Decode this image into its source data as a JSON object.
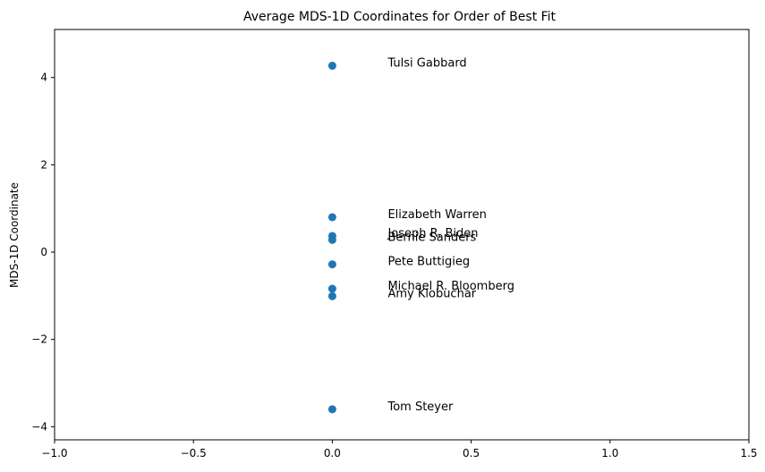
{
  "chart_data": {
    "type": "scatter",
    "title": "Average MDS-1D Coordinates for Order of Best Fit",
    "xlabel": "",
    "ylabel": "MDS-1D Coordinate",
    "xlim": [
      -1.0,
      1.5
    ],
    "ylim": [
      -4.3,
      5.1
    ],
    "x_ticks": [
      -1.0,
      -0.5,
      0.0,
      0.5,
      1.0,
      1.5
    ],
    "x_tick_labels": [
      "−1.0",
      "−0.5",
      "0.0",
      "0.5",
      "1.0",
      "1.5"
    ],
    "y_ticks": [
      -4,
      -2,
      0,
      2,
      4
    ],
    "y_tick_labels": [
      "−4",
      "−2",
      "0",
      "2",
      "4"
    ],
    "grid": false,
    "marker_color": "#1f77b4",
    "label_x_offset": 0.2,
    "points": [
      {
        "label": "Tulsi Gabbard",
        "x": 0.0,
        "y": 4.27
      },
      {
        "label": "Elizabeth Warren",
        "x": 0.0,
        "y": 0.8
      },
      {
        "label": "Joseph R. Biden",
        "x": 0.0,
        "y": 0.37
      },
      {
        "label": "Bernie Sanders",
        "x": 0.0,
        "y": 0.28
      },
      {
        "label": "Pete Buttigieg",
        "x": 0.0,
        "y": -0.28
      },
      {
        "label": "Michael R. Bloomberg",
        "x": 0.0,
        "y": -0.84
      },
      {
        "label": "Amy Klobuchar",
        "x": 0.0,
        "y": -1.01
      },
      {
        "label": "Tom Steyer",
        "x": 0.0,
        "y": -3.6
      }
    ]
  }
}
